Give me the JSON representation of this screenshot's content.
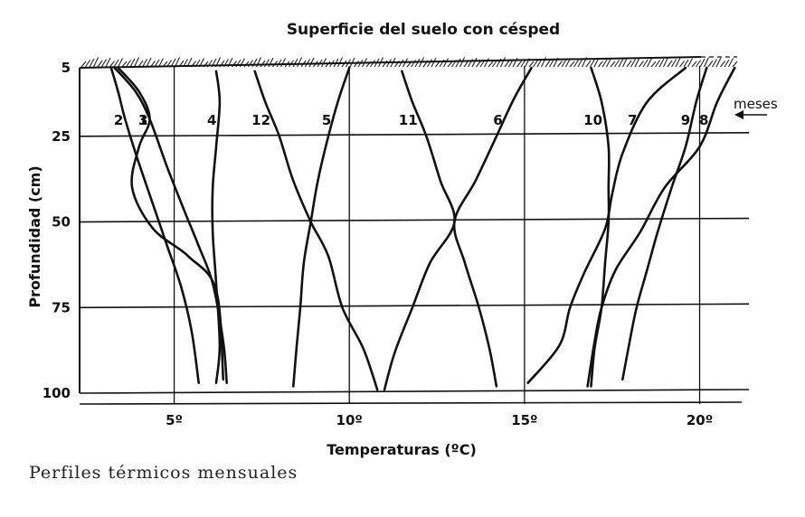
{
  "caption": "Perfiles térmicos mensuales",
  "chart_data": {
    "type": "line",
    "title": "Superficie del suelo con césped",
    "xlabel": "Temperaturas (ºC)",
    "ylabel": "Profundidad (cm)",
    "annotation": "meses",
    "xlim": [
      2.3,
      21.2
    ],
    "ylim": [
      5,
      100
    ],
    "yticks": [
      5,
      25,
      50,
      75,
      100
    ],
    "ytick_labels": [
      "5",
      "25",
      "50",
      "75",
      "100"
    ],
    "xticks": [
      5,
      10,
      15,
      20
    ],
    "xtick_labels": [
      "5º",
      "10º",
      "15º",
      "20º"
    ],
    "grid": true,
    "series": [
      {
        "name": "1",
        "points": [
          [
            3.3,
            5
          ],
          [
            3.9,
            12
          ],
          [
            4.3,
            20
          ],
          [
            4.8,
            34
          ],
          [
            5.3,
            47
          ],
          [
            5.7,
            57
          ],
          [
            6.1,
            68
          ],
          [
            6.4,
            85
          ],
          [
            6.5,
            97
          ]
        ]
      },
      {
        "name": "2",
        "points": [
          [
            3.2,
            5
          ],
          [
            3.4,
            12
          ],
          [
            3.6,
            20
          ],
          [
            3.9,
            30
          ],
          [
            4.4,
            45
          ],
          [
            4.8,
            57
          ],
          [
            5.2,
            69
          ],
          [
            5.5,
            82
          ],
          [
            5.7,
            97
          ]
        ]
      },
      {
        "name": "3",
        "points": [
          [
            3.4,
            5
          ],
          [
            4.0,
            12
          ],
          [
            4.3,
            20
          ],
          [
            4.0,
            28
          ],
          [
            3.8,
            40
          ],
          [
            4.4,
            52
          ],
          [
            5.4,
            60
          ],
          [
            6.2,
            70
          ],
          [
            6.4,
            96
          ]
        ]
      },
      {
        "name": "4",
        "points": [
          [
            6.2,
            6
          ],
          [
            6.3,
            15
          ],
          [
            6.2,
            28
          ],
          [
            6.1,
            40
          ],
          [
            6.1,
            53
          ],
          [
            6.2,
            68
          ],
          [
            6.3,
            86
          ],
          [
            6.2,
            97
          ]
        ]
      },
      {
        "name": "5",
        "points": [
          [
            10.0,
            5
          ],
          [
            9.7,
            14
          ],
          [
            9.4,
            25
          ],
          [
            9.1,
            38
          ],
          [
            8.9,
            50
          ],
          [
            8.7,
            62
          ],
          [
            8.6,
            75
          ],
          [
            8.5,
            86
          ],
          [
            8.4,
            98
          ]
        ]
      },
      {
        "name": "6",
        "points": [
          [
            15.2,
            5
          ],
          [
            14.7,
            14
          ],
          [
            14.2,
            25
          ],
          [
            13.6,
            38
          ],
          [
            13.0,
            50
          ],
          [
            13.3,
            62
          ],
          [
            13.7,
            75
          ],
          [
            14.0,
            87
          ],
          [
            14.2,
            98
          ]
        ]
      },
      {
        "name": "7",
        "points": [
          [
            19.6,
            5
          ],
          [
            18.5,
            15
          ],
          [
            17.8,
            30
          ],
          [
            17.5,
            42
          ],
          [
            17.3,
            52
          ],
          [
            16.7,
            65
          ],
          [
            16.3,
            75
          ],
          [
            16.0,
            86
          ],
          [
            15.1,
            97
          ]
        ]
      },
      {
        "name": "8",
        "points": [
          [
            21.0,
            5
          ],
          [
            20.5,
            15
          ],
          [
            20.0,
            28
          ],
          [
            19.0,
            40
          ],
          [
            18.3,
            53
          ],
          [
            17.6,
            64
          ],
          [
            17.2,
            75
          ],
          [
            17.0,
            85
          ],
          [
            16.8,
            98
          ]
        ]
      },
      {
        "name": "9",
        "points": [
          [
            20.2,
            5
          ],
          [
            19.9,
            15
          ],
          [
            19.6,
            28
          ],
          [
            19.2,
            40
          ],
          [
            18.8,
            53
          ],
          [
            18.5,
            64
          ],
          [
            18.2,
            75
          ],
          [
            18.0,
            85
          ],
          [
            17.8,
            96
          ]
        ]
      },
      {
        "name": "10",
        "points": [
          [
            16.9,
            5
          ],
          [
            17.2,
            15
          ],
          [
            17.4,
            28
          ],
          [
            17.4,
            40
          ],
          [
            17.4,
            50
          ],
          [
            17.3,
            62
          ],
          [
            17.2,
            75
          ],
          [
            17.0,
            87
          ],
          [
            16.9,
            98
          ]
        ]
      },
      {
        "name": "11",
        "points": [
          [
            11.5,
            6
          ],
          [
            11.8,
            15
          ],
          [
            12.2,
            25
          ],
          [
            12.6,
            38
          ],
          [
            13.0,
            50
          ],
          [
            12.3,
            62
          ],
          [
            11.8,
            75
          ],
          [
            11.3,
            88
          ],
          [
            11.0,
            99
          ]
        ]
      },
      {
        "name": "12",
        "points": [
          [
            7.3,
            6
          ],
          [
            7.6,
            15
          ],
          [
            8.0,
            25
          ],
          [
            8.4,
            38
          ],
          [
            8.9,
            50
          ],
          [
            9.4,
            60
          ],
          [
            9.8,
            75
          ],
          [
            10.4,
            87
          ],
          [
            10.8,
            99
          ]
        ]
      }
    ]
  }
}
